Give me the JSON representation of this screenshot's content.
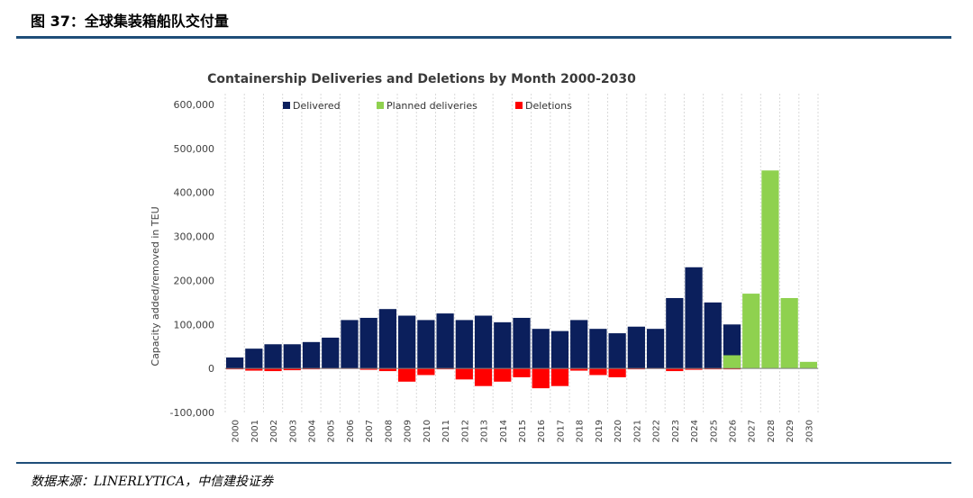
{
  "figure": {
    "title": "图 37：全球集装箱船队交付量",
    "source": "数据来源：LINERLYTICA，中信建投证券"
  },
  "colors": {
    "delivered": "#0b1f5c",
    "planned": "#8fd14f",
    "deletions": "#ff0000",
    "rule": "#1f4e79",
    "grid": "#d9d9d9"
  },
  "chart_data": {
    "type": "bar",
    "title": "Containership Deliveries and Deletions by Month 2000-2030",
    "ylabel": "Capacity added/removed in TEU",
    "xlabel": "",
    "ylim": [
      -100000,
      600000
    ],
    "yticks": [
      -100000,
      0,
      100000,
      200000,
      300000,
      400000,
      500000,
      600000
    ],
    "ytick_labels": [
      "-100,000",
      "0",
      "100,000",
      "200,000",
      "300,000",
      "400,000",
      "500,000",
      "600,000"
    ],
    "categories": [
      "2000",
      "2001",
      "2002",
      "2003",
      "2004",
      "2005",
      "2006",
      "2007",
      "2008",
      "2009",
      "2010",
      "2011",
      "2012",
      "2013",
      "2014",
      "2015",
      "2016",
      "2017",
      "2018",
      "2019",
      "2020",
      "2021",
      "2022",
      "2023",
      "2024",
      "2025",
      "2026",
      "2027",
      "2028",
      "2029",
      "2030"
    ],
    "legend_position": "top",
    "grid": "vertical",
    "series": [
      {
        "name": "Delivered",
        "values": [
          25000,
          45000,
          55000,
          55000,
          60000,
          70000,
          110000,
          115000,
          135000,
          120000,
          110000,
          125000,
          110000,
          120000,
          105000,
          115000,
          90000,
          85000,
          110000,
          90000,
          80000,
          95000,
          90000,
          160000,
          230000,
          150000,
          100000,
          0,
          0,
          0,
          0
        ]
      },
      {
        "name": "Planned deliveries",
        "values": [
          0,
          0,
          0,
          0,
          0,
          0,
          0,
          0,
          0,
          0,
          0,
          0,
          0,
          0,
          0,
          0,
          0,
          0,
          0,
          0,
          0,
          0,
          0,
          0,
          0,
          0,
          30000,
          170000,
          450000,
          160000,
          15000
        ]
      },
      {
        "name": "Deletions",
        "values": [
          -2000,
          -5000,
          -6000,
          -4000,
          -2000,
          -1000,
          -1000,
          -3000,
          -6000,
          -30000,
          -15000,
          -2000,
          -25000,
          -40000,
          -30000,
          -20000,
          -45000,
          -40000,
          -5000,
          -15000,
          -20000,
          -2000,
          -1000,
          -6000,
          -3000,
          -2000,
          -2000,
          0,
          0,
          0,
          0
        ]
      }
    ]
  }
}
